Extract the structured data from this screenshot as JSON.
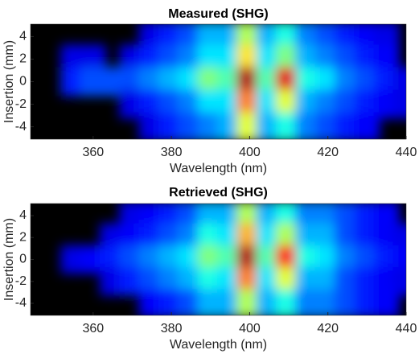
{
  "chart_data": [
    {
      "type": "heatmap",
      "title": "Measured (SHG)",
      "xlabel": "Wavelength (nm)",
      "ylabel": "Insertion (mm)",
      "colormap": "jet",
      "zlim": [
        0,
        1
      ],
      "x": [
        350,
        355,
        360,
        365,
        370,
        375,
        380,
        385,
        390,
        395,
        400,
        405,
        410,
        415,
        420,
        425,
        430,
        435,
        440
      ],
      "y": [
        4,
        2,
        0,
        -2,
        -4
      ],
      "z": [
        [
          null,
          null,
          null,
          null,
          null,
          0.1,
          0.15,
          0.2,
          0.3,
          0.3,
          0.55,
          0.3,
          0.4,
          0.25,
          0.2,
          0.15,
          0.12,
          0.1,
          null
        ],
        [
          null,
          0.1,
          0.1,
          null,
          0.1,
          0.15,
          0.2,
          0.25,
          0.35,
          0.35,
          0.65,
          0.35,
          0.5,
          0.3,
          0.25,
          0.2,
          0.15,
          0.12,
          null
        ],
        [
          null,
          0.15,
          0.2,
          0.2,
          0.2,
          0.25,
          0.3,
          0.35,
          0.5,
          0.45,
          0.95,
          0.45,
          0.9,
          0.4,
          0.35,
          0.25,
          0.2,
          0.15,
          0.1
        ],
        [
          null,
          null,
          null,
          null,
          0.1,
          0.15,
          0.2,
          0.25,
          0.35,
          0.35,
          0.75,
          0.35,
          0.6,
          0.3,
          0.25,
          0.2,
          0.15,
          0.12,
          0.1
        ],
        [
          null,
          null,
          null,
          null,
          null,
          0.1,
          0.15,
          0.2,
          0.25,
          0.3,
          0.6,
          0.3,
          0.4,
          0.25,
          0.2,
          0.15,
          0.12,
          null,
          null
        ]
      ],
      "xlim": [
        344,
        440
      ],
      "xticks": [
        360,
        380,
        400,
        420,
        440
      ],
      "ylim": [
        -5.1,
        5.1
      ],
      "yticks": [
        4,
        2,
        0,
        -2,
        -4
      ]
    },
    {
      "type": "heatmap",
      "title": "Retrieved (SHG)",
      "xlabel": "Wavelength (nm)",
      "ylabel": "Insertion (mm)",
      "colormap": "jet",
      "zlim": [
        0,
        1
      ],
      "x": [
        350,
        355,
        360,
        365,
        370,
        375,
        380,
        385,
        390,
        395,
        400,
        405,
        410,
        415,
        420,
        425,
        430,
        435,
        440
      ],
      "y": [
        4,
        2,
        0,
        -2,
        -4
      ],
      "z": [
        [
          null,
          null,
          null,
          null,
          0.1,
          0.12,
          0.15,
          0.2,
          0.3,
          0.3,
          0.55,
          0.3,
          0.4,
          0.25,
          0.25,
          0.2,
          0.15,
          0.12,
          null
        ],
        [
          null,
          null,
          null,
          0.1,
          0.12,
          0.15,
          0.2,
          0.25,
          0.4,
          0.35,
          0.7,
          0.35,
          0.55,
          0.3,
          0.3,
          0.2,
          0.15,
          0.12,
          0.1
        ],
        [
          null,
          0.1,
          0.12,
          0.15,
          0.2,
          0.25,
          0.3,
          0.35,
          0.5,
          0.45,
          0.95,
          0.45,
          0.85,
          0.4,
          0.35,
          0.25,
          0.2,
          0.15,
          0.12
        ],
        [
          null,
          null,
          null,
          0.1,
          0.15,
          0.2,
          0.25,
          0.3,
          0.4,
          0.35,
          0.75,
          0.35,
          0.6,
          0.3,
          0.3,
          0.2,
          0.15,
          0.12,
          0.1
        ],
        [
          null,
          null,
          null,
          null,
          null,
          0.12,
          0.15,
          0.2,
          0.3,
          0.3,
          0.55,
          0.3,
          0.4,
          0.25,
          0.25,
          0.2,
          0.15,
          0.12,
          null
        ]
      ],
      "xlim": [
        344,
        440
      ],
      "xticks": [
        360,
        380,
        400,
        420,
        440
      ],
      "ylim": [
        -5.1,
        5.1
      ],
      "yticks": [
        4,
        2,
        0,
        -2,
        -4
      ]
    }
  ]
}
